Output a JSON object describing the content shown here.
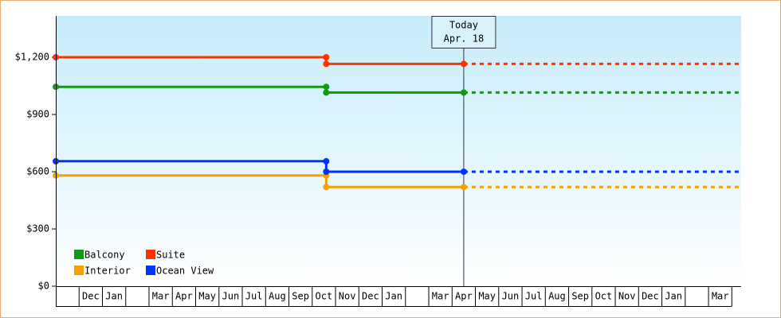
{
  "chart_data": {
    "type": "step-line",
    "categories": [
      null,
      "Dec",
      "Jan",
      null,
      "Mar",
      "Apr",
      "May",
      "Jun",
      "Jul",
      "Aug",
      "Sep",
      "Oct",
      "Nov",
      "Dec",
      "Jan",
      null,
      "Mar",
      "Apr",
      "May",
      "Jun",
      "Jul",
      "Aug",
      "Sep",
      "Oct",
      "Nov",
      "Dec",
      "Jan",
      null,
      "Mar"
    ],
    "x": [
      0,
      11.6,
      11.6,
      17.5
    ],
    "forecast_x": [
      17.5,
      29.4
    ],
    "series": [
      {
        "name": "Balcony",
        "color": "#119911",
        "values": [
          1045,
          1045,
          1015,
          1015
        ],
        "forecast": [
          1015,
          1015
        ]
      },
      {
        "name": "Suite",
        "color": "#ff3300",
        "values": [
          1200,
          1200,
          1165,
          1165
        ],
        "forecast": [
          1165,
          1165
        ]
      },
      {
        "name": "Interior",
        "color": "#f5a000",
        "values": [
          580,
          580,
          520,
          520
        ],
        "forecast": [
          520,
          520
        ]
      },
      {
        "name": "Ocean View",
        "color": "#0033ff",
        "values": [
          655,
          655,
          600,
          600
        ],
        "forecast": [
          600,
          600
        ]
      }
    ],
    "xlim": [
      0,
      29.4
    ],
    "ylim": [
      0,
      1400
    ],
    "yticks": [
      {
        "value": 0,
        "label": "$0"
      },
      {
        "value": 300,
        "label": "$300"
      },
      {
        "value": 600,
        "label": "$600"
      },
      {
        "value": 900,
        "label": "$900"
      },
      {
        "value": 1200,
        "label": "$1,200"
      }
    ],
    "annotation": {
      "x": 17.5,
      "lines": [
        "Today",
        "Apr. 18"
      ]
    },
    "legend": "lower-left"
  }
}
